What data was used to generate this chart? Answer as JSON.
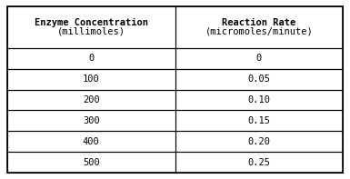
{
  "col1_header": "Enzyme Concentration",
  "col1_subheader": "(millimoles)",
  "col2_header": "Reaction Rate",
  "col2_subheader": "(micromoles/minute)",
  "col1_values": [
    "0",
    "100",
    "200",
    "300",
    "400",
    "500"
  ],
  "col2_values": [
    "0",
    "0.05",
    "0.10",
    "0.15",
    "0.20",
    "0.25"
  ],
  "background_color": "#ffffff",
  "border_color": "#000000",
  "header_fontsize": 7.5,
  "data_fontsize": 7.5,
  "font_family": "monospace"
}
